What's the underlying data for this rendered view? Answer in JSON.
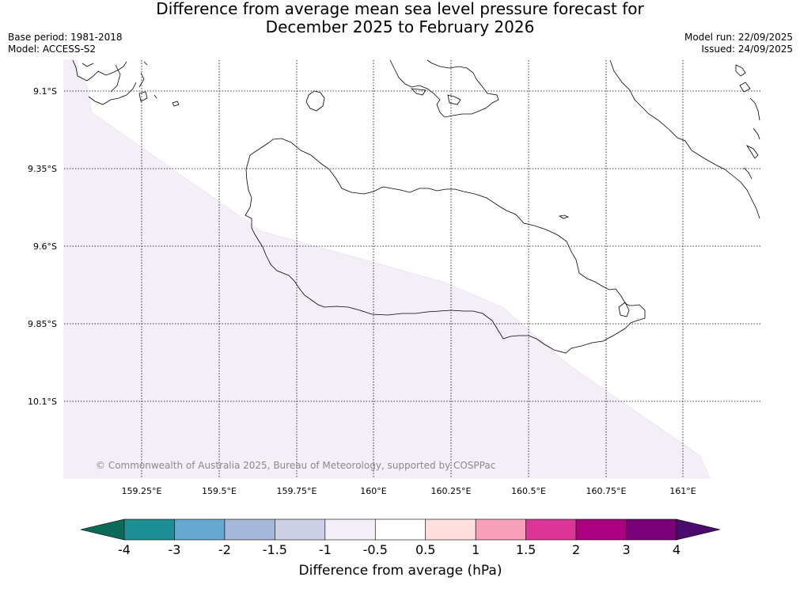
{
  "header": {
    "title_line1": "Difference from average mean sea level pressure forecast for",
    "title_line2": "December 2025 to February 2026",
    "base_period": "Base period: 1981-2018",
    "model": "Model: ACCESS-S2",
    "model_run": "Model run: 22/09/2025",
    "issued": "Issued: 24/09/2025"
  },
  "map": {
    "lat_labels": [
      "9.1°S",
      "9.35°S",
      "9.6°S",
      "9.85°S",
      "10.1°S"
    ],
    "lon_labels": [
      "159.25°E",
      "159.5°E",
      "159.75°E",
      "160°E",
      "160.25°E",
      "160.5°E",
      "160.75°E",
      "161°E"
    ],
    "copyright": "© Commonwealth of Australia 2025, Bureau of Meteorology, supported by COSPPac",
    "shaded_band_value": "-1 to -0.5",
    "shade_color": "#f4eef6"
  },
  "colorbar": {
    "title": "Difference from average (hPa)",
    "tick_labels": [
      "-4",
      "-3",
      "-2",
      "-1.5",
      "-1",
      "-0.5",
      "0.5",
      "1",
      "1.5",
      "2",
      "3",
      "4"
    ],
    "low_extend_color": "#0b6b5a",
    "high_extend_color": "#4a0a6e",
    "segment_colors": [
      "#1b8f95",
      "#66a8d2",
      "#a6b8da",
      "#cdcfe5",
      "#f4eef6",
      "#ffffff",
      "#ffdede",
      "#f8a0bb",
      "#dc3597",
      "#ac0080",
      "#7a007a"
    ]
  }
}
